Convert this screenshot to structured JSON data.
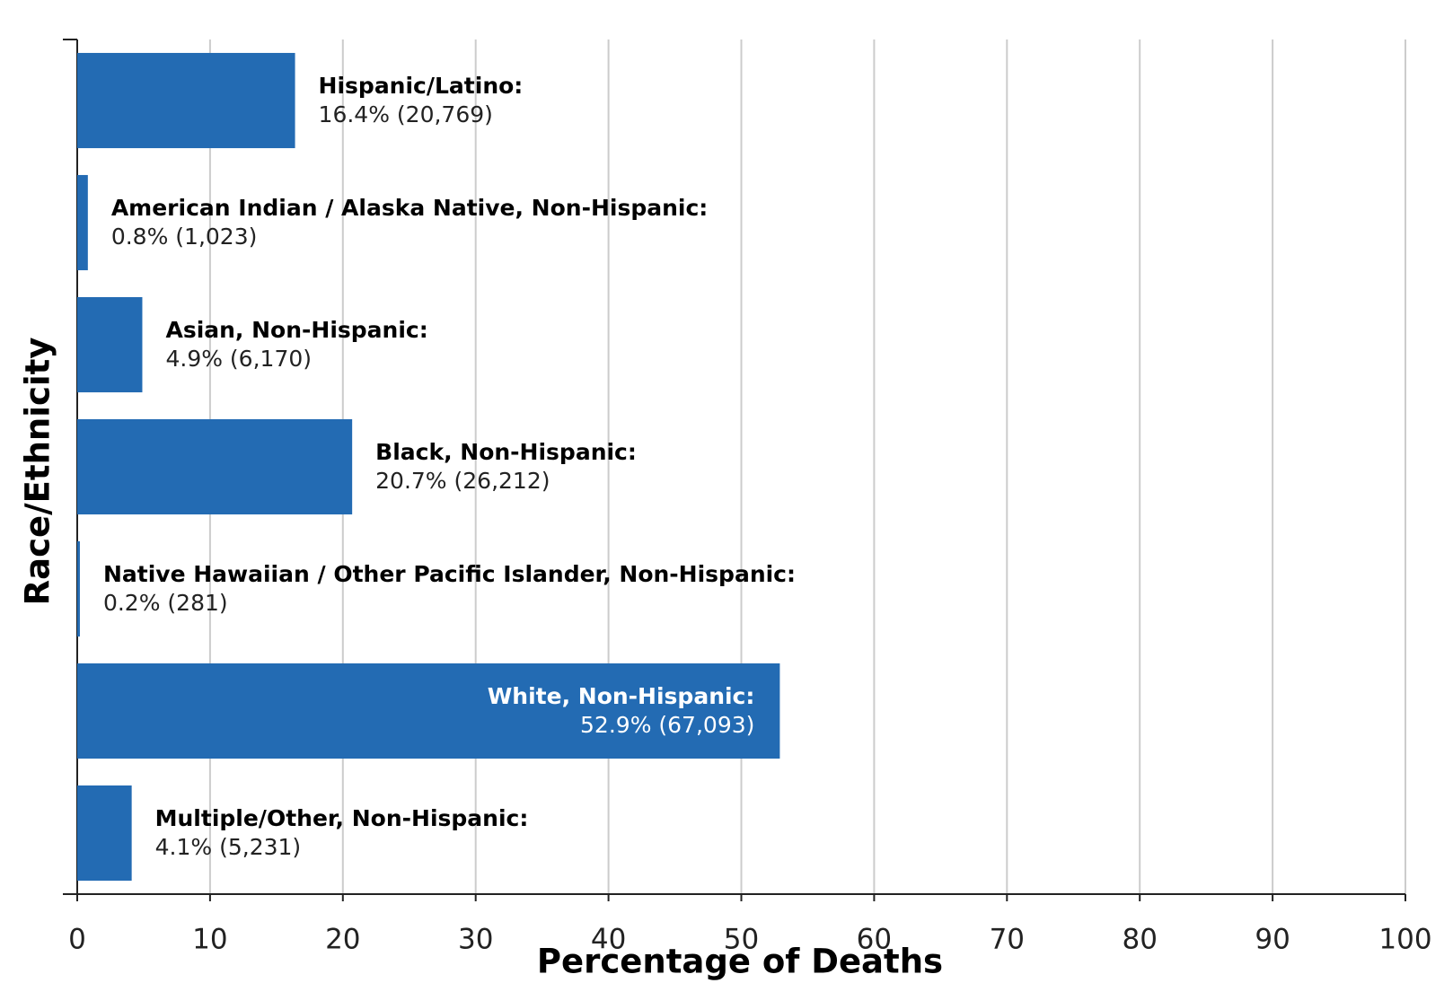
{
  "chart_data": {
    "type": "bar",
    "orientation": "horizontal",
    "x_label": "Percentage of Deaths",
    "y_label": "Race/Ethnicity",
    "categories": [
      "Hispanic/Latino:",
      "American Indian / Alaska Native, Non-Hispanic:",
      "Asian, Non-Hispanic:",
      "Black, Non-Hispanic:",
      "Native Hawaiian / Other Pacific Islander, Non-Hispanic:",
      "White, Non-Hispanic:",
      "Multiple/Other, Non-Hispanic:"
    ],
    "values": [
      16.4,
      0.8,
      4.9,
      20.7,
      0.2,
      52.9,
      4.1
    ],
    "value_labels": [
      "16.4% (20,769)",
      "0.8% (1,023)",
      "4.9% (6,170)",
      "20.7% (26,212)",
      "0.2% (281)",
      "52.9% (67,093)",
      "4.1% (5,231)"
    ],
    "color": "#236bb3",
    "xlim": [
      0,
      100
    ],
    "xticks": [
      0,
      10,
      20,
      30,
      40,
      50,
      60,
      70,
      80,
      90,
      100
    ],
    "grid": true
  }
}
